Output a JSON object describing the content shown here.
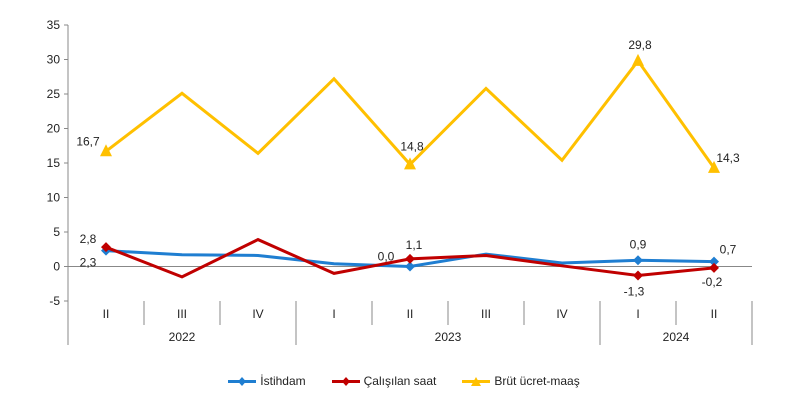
{
  "chart_data": {
    "type": "line",
    "categories": [
      "II",
      "III",
      "IV",
      "I",
      "II",
      "III",
      "IV",
      "I",
      "II"
    ],
    "years": [
      {
        "label": "2022",
        "span": 3
      },
      {
        "label": "2023",
        "span": 4
      },
      {
        "label": "2024",
        "span": 2
      }
    ],
    "ylim": [
      -5,
      35
    ],
    "yticks": [
      -5,
      0,
      5,
      10,
      15,
      20,
      25,
      30,
      35
    ],
    "grid": false,
    "legend": "bottom",
    "series": [
      {
        "name": "İstihdam",
        "color": "#1f7ed1",
        "marker": "diamond",
        "values": [
          2.3,
          1.7,
          1.6,
          0.4,
          0.0,
          1.8,
          0.5,
          0.9,
          0.7
        ],
        "labels": {
          "0": "2,3",
          "4": "0,0",
          "7": "0,9",
          "8": "0,7"
        }
      },
      {
        "name": "Çalışılan saat",
        "color": "#c00000",
        "marker": "diamond",
        "values": [
          2.8,
          -1.5,
          3.9,
          -1.0,
          1.1,
          1.6,
          0.1,
          -1.3,
          -0.2
        ],
        "labels": {
          "0": "2,8",
          "4": "1,1",
          "7": "-1,3",
          "8": "-0,2"
        }
      },
      {
        "name": "Brüt ücret-maaş",
        "color": "#ffc000",
        "marker": "triangle",
        "values": [
          16.7,
          25.1,
          16.4,
          27.2,
          14.8,
          25.8,
          15.4,
          29.8,
          14.3
        ],
        "labels": {
          "0": "16,7",
          "4": "14,8",
          "7": "29,8",
          "8": "14,3"
        }
      }
    ]
  }
}
